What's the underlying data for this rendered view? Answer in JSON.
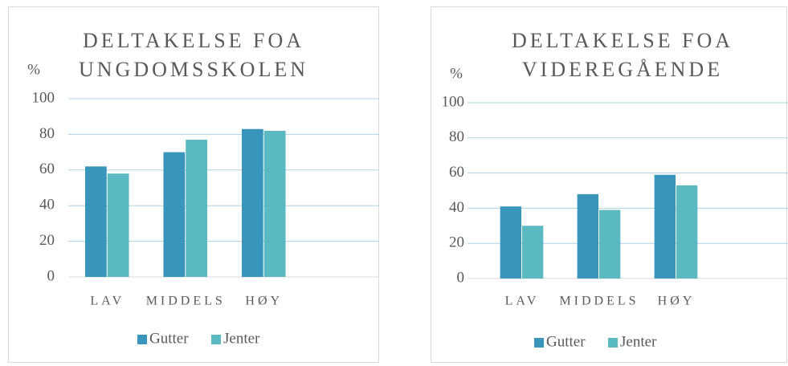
{
  "chart_data": [
    {
      "type": "bar",
      "title": [
        "DELTAKELSE FOA",
        "UNGDOMSSKOLEN"
      ],
      "y_label": "%",
      "categories": [
        "LAV",
        "MIDDELS",
        "HØY",
        null
      ],
      "series": [
        {
          "name": "Gutter",
          "color": "#3a95bb",
          "values": [
            62,
            70,
            83,
            null
          ]
        },
        {
          "name": "Jenter",
          "color": "#5bb9c2",
          "values": [
            58,
            77,
            82,
            null
          ]
        }
      ],
      "ylim": [
        0,
        100
      ],
      "yticks": [
        0,
        20,
        40,
        60,
        80,
        100
      ],
      "grid": true,
      "legend": "bottom"
    },
    {
      "type": "bar",
      "title": [
        "DELTAKELSE FOA",
        "VIDEREGÅENDE"
      ],
      "y_label": "%",
      "categories": [
        "LAV",
        "MIDDELS",
        "HØY",
        null
      ],
      "series": [
        {
          "name": "Gutter",
          "color": "#3a95bb",
          "values": [
            41,
            48,
            59,
            null
          ]
        },
        {
          "name": "Jenter",
          "color": "#5bb9c2",
          "values": [
            30,
            39,
            53,
            null
          ]
        }
      ],
      "ylim": [
        0,
        100
      ],
      "yticks": [
        0,
        20,
        40,
        60,
        80,
        100
      ],
      "grid": true,
      "legend": "bottom"
    }
  ]
}
